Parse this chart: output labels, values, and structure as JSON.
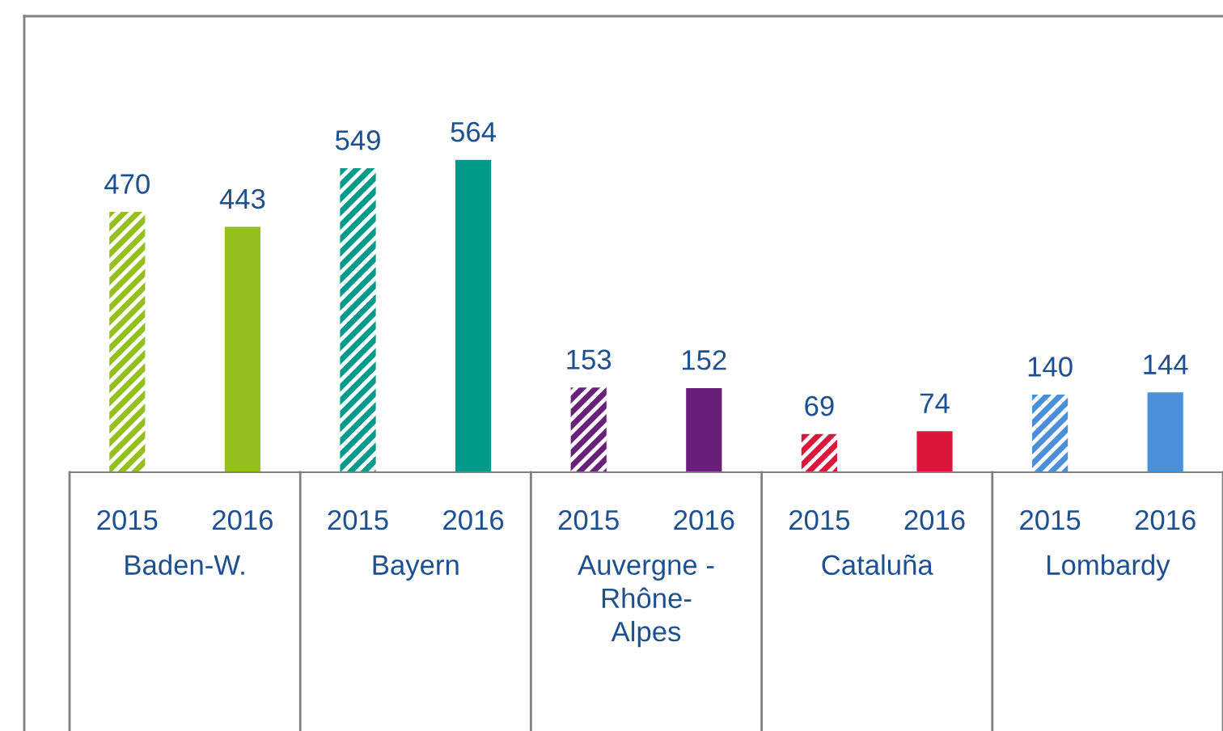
{
  "chart_data": {
    "type": "bar",
    "categories": [
      "Baden-W.",
      "Bayern",
      "Auvergne -\nRhône-\nAlpes",
      "Cataluña",
      "Lombardy"
    ],
    "series": [
      {
        "name": "2015",
        "colors": [
          "#93c01f",
          "#009a8a",
          "#6a1f7a",
          "#d9183b",
          "#4a90d9"
        ],
        "values": [
          470,
          549,
          153,
          69,
          140
        ]
      },
      {
        "name": "2016",
        "colors": [
          "#93c01f",
          "#009a8a",
          "#6a1f7a",
          "#d9183b",
          "#4a90d9"
        ],
        "values": [
          443,
          564,
          152,
          74,
          144
        ]
      }
    ],
    "data_labels": true
  }
}
